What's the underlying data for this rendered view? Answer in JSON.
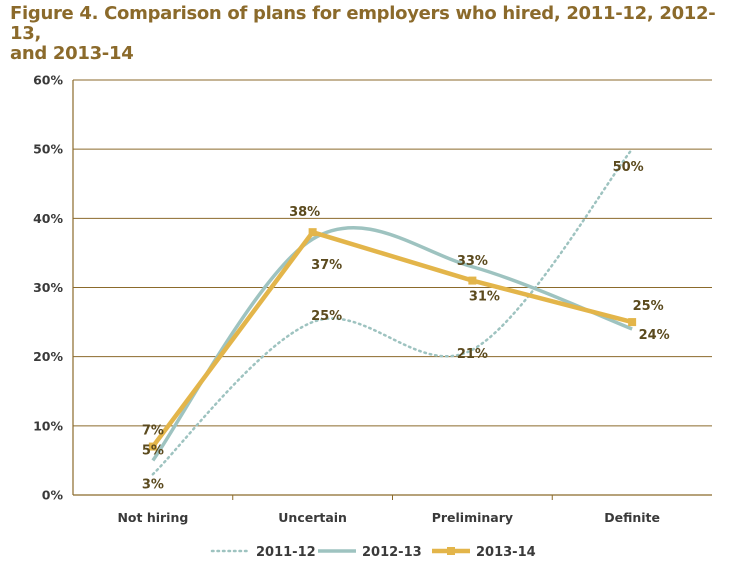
{
  "title_lines": [
    "Figure 4. Comparison of plans for employers who hired, 2011-12, 2012-13,",
    "and 2013-14"
  ],
  "chart_data": {
    "type": "line",
    "title": "Figure 4. Comparison of plans for employers who hired, 2011-12, 2012-13, and 2013-14",
    "categories": [
      "Not hiring",
      "Uncertain",
      "Preliminary",
      "Definite"
    ],
    "y_ticks": [
      "0%",
      "10%",
      "20%",
      "30%",
      "40%",
      "50%",
      "60%"
    ],
    "ylim": [
      0,
      60
    ],
    "ytick_step": 10,
    "grid": true,
    "legend_position": "bottom-center",
    "series": [
      {
        "name": "2011-12",
        "values": [
          3,
          25,
          21,
          50
        ],
        "labels": [
          "3%",
          "25%",
          "21%",
          "50%"
        ],
        "color": "#9EC3C0",
        "style": "dotted"
      },
      {
        "name": "2012-13",
        "values": [
          5,
          37,
          33,
          24
        ],
        "labels": [
          "5%",
          "37%",
          "33%",
          "24%"
        ],
        "color": "#9EC3C0",
        "style": "solid"
      },
      {
        "name": "2013-14",
        "values": [
          7,
          38,
          31,
          25
        ],
        "labels": [
          "7%",
          "38%",
          "31%",
          "25%"
        ],
        "color": "#E3B54A",
        "style": "solid-marker"
      }
    ],
    "colors": {
      "title": "#8B6A2B",
      "grid": "#8B6A2B",
      "axis": "#8B6A2B"
    }
  }
}
